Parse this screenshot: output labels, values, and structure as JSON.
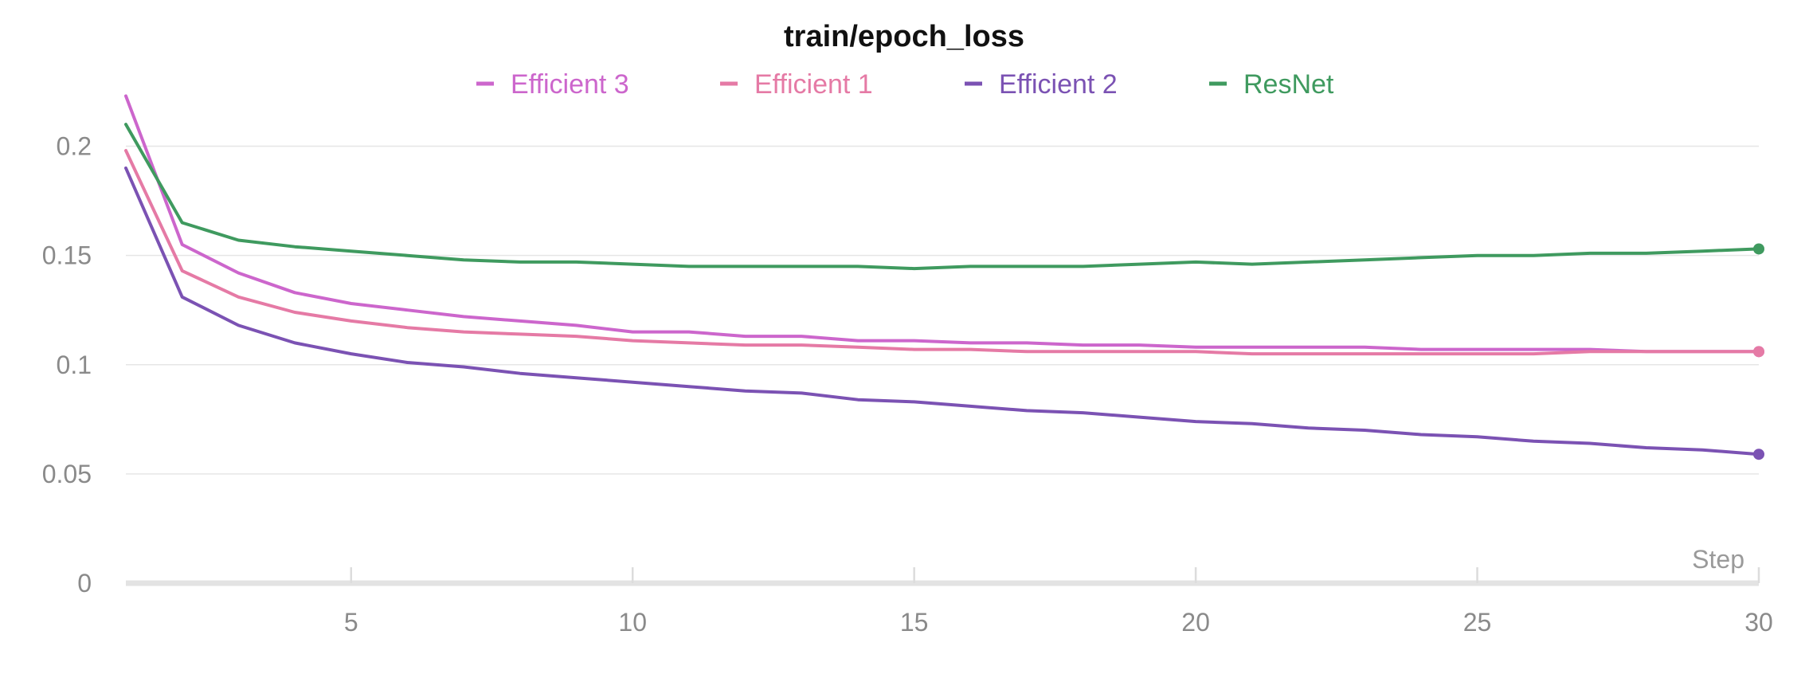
{
  "chart_data": {
    "type": "line",
    "title": "train/epoch_loss",
    "xlabel": "Step",
    "ylabel": "",
    "xlim": [
      1,
      30
    ],
    "ylim": [
      0,
      0.225
    ],
    "x_ticks": [
      5,
      10,
      15,
      20,
      25,
      30
    ],
    "y_ticks": [
      0,
      0.05,
      0.1,
      0.15,
      0.2
    ],
    "y_tick_labels": [
      "0",
      "0.05",
      "0.1",
      "0.15",
      "0.2"
    ],
    "grid": true,
    "legend_position": "top-center",
    "x": [
      1,
      2,
      3,
      4,
      5,
      6,
      7,
      8,
      9,
      10,
      11,
      12,
      13,
      14,
      15,
      16,
      17,
      18,
      19,
      20,
      21,
      22,
      23,
      24,
      25,
      26,
      27,
      28,
      29,
      30
    ],
    "series": [
      {
        "name": "Efficient 3",
        "color": "#cc66cc",
        "values": [
          0.223,
          0.155,
          0.142,
          0.133,
          0.128,
          0.125,
          0.122,
          0.12,
          0.118,
          0.115,
          0.115,
          0.113,
          0.113,
          0.111,
          0.111,
          0.11,
          0.11,
          0.109,
          0.109,
          0.108,
          0.108,
          0.108,
          0.108,
          0.107,
          0.107,
          0.107,
          0.107,
          0.106,
          0.106,
          0.106
        ]
      },
      {
        "name": "Efficient 1",
        "color": "#e57aa5",
        "values": [
          0.198,
          0.143,
          0.131,
          0.124,
          0.12,
          0.117,
          0.115,
          0.114,
          0.113,
          0.111,
          0.11,
          0.109,
          0.109,
          0.108,
          0.107,
          0.107,
          0.106,
          0.106,
          0.106,
          0.106,
          0.105,
          0.105,
          0.105,
          0.105,
          0.105,
          0.105,
          0.106,
          0.106,
          0.106,
          0.106
        ]
      },
      {
        "name": "Efficient 2",
        "color": "#7b52b3",
        "values": [
          0.19,
          0.131,
          0.118,
          0.11,
          0.105,
          0.101,
          0.099,
          0.096,
          0.094,
          0.092,
          0.09,
          0.088,
          0.087,
          0.084,
          0.083,
          0.081,
          0.079,
          0.078,
          0.076,
          0.074,
          0.073,
          0.071,
          0.07,
          0.068,
          0.067,
          0.065,
          0.064,
          0.062,
          0.061,
          0.059
        ]
      },
      {
        "name": "ResNet",
        "color": "#3f9a5f",
        "values": [
          0.21,
          0.165,
          0.157,
          0.154,
          0.152,
          0.15,
          0.148,
          0.147,
          0.147,
          0.146,
          0.145,
          0.145,
          0.145,
          0.145,
          0.144,
          0.145,
          0.145,
          0.145,
          0.146,
          0.147,
          0.146,
          0.147,
          0.148,
          0.149,
          0.15,
          0.15,
          0.151,
          0.151,
          0.152,
          0.153
        ]
      }
    ]
  }
}
